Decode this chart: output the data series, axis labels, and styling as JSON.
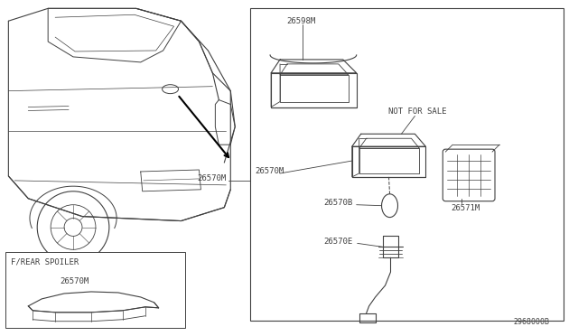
{
  "bg_color": "#ffffff",
  "line_color": "#404040",
  "diagram_code": "2968000B",
  "parts": {
    "26598M": "26598M",
    "26570M_main": "26570M",
    "26570B": "26570B",
    "26570E": "26570E",
    "26571M": "26571M",
    "26570M_spoiler": "26570M",
    "not_for_sale": "NOT FOR SALE"
  },
  "spoiler_label": "F/REAR SPOILER"
}
